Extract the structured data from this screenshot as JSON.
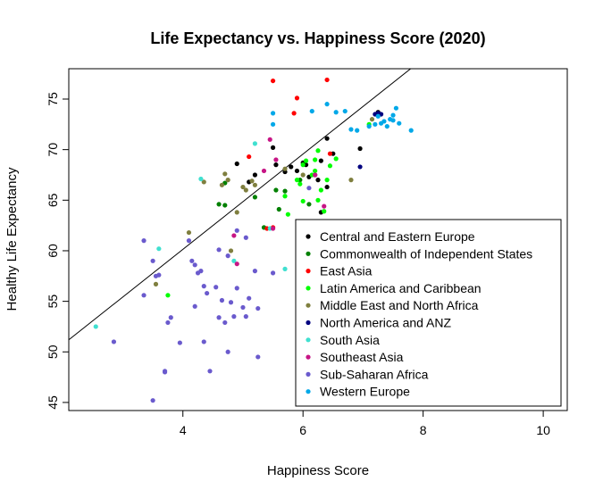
{
  "chart_data": {
    "type": "scatter",
    "title": "Life Expectancy vs. Happiness Score (2020)",
    "xlabel": "Happiness Score",
    "ylabel": "Healthy Life Expectancy",
    "xlim": [
      2.1,
      10.4
    ],
    "ylim": [
      44.2,
      78.0
    ],
    "xticks": [
      4,
      6,
      8,
      10
    ],
    "yticks": [
      45,
      50,
      55,
      60,
      65,
      70,
      75
    ],
    "grid": false,
    "legend_position": "bottom-right",
    "trendline": {
      "slope": 4.71,
      "intercept": 41.3
    },
    "series": [
      {
        "name": "Central and Eastern Europe",
        "color": "#000000",
        "points": [
          [
            4.9,
            68.6
          ],
          [
            5.1,
            66.8
          ],
          [
            5.2,
            67.5
          ],
          [
            5.5,
            70.2
          ],
          [
            5.55,
            68.5
          ],
          [
            5.7,
            67.8
          ],
          [
            5.8,
            68.3
          ],
          [
            5.9,
            67.9
          ],
          [
            6.0,
            68.7
          ],
          [
            6.05,
            68.5
          ],
          [
            6.1,
            67.3
          ],
          [
            6.2,
            67.5
          ],
          [
            6.25,
            67.0
          ],
          [
            6.3,
            68.9
          ],
          [
            6.4,
            71.1
          ],
          [
            6.3,
            63.8
          ],
          [
            6.4,
            66.3
          ],
          [
            6.5,
            69.6
          ],
          [
            6.95,
            70.1
          ],
          [
            7.25,
            73.7
          ]
        ]
      },
      {
        "name": "Commonwealth of Independent States",
        "color": "#008000",
        "points": [
          [
            4.6,
            64.6
          ],
          [
            4.7,
            64.5
          ],
          [
            4.7,
            66.7
          ],
          [
            5.2,
            65.3
          ],
          [
            5.35,
            62.3
          ],
          [
            5.55,
            66.0
          ],
          [
            5.6,
            64.1
          ],
          [
            5.7,
            65.9
          ],
          [
            5.95,
            67.0
          ],
          [
            6.1,
            64.6
          ],
          [
            6.25,
            62.6
          ]
        ]
      },
      {
        "name": "East Asia",
        "color": "#ff0000",
        "points": [
          [
            5.1,
            69.3
          ],
          [
            5.4,
            62.2
          ],
          [
            5.5,
            62.3
          ],
          [
            5.5,
            76.8
          ],
          [
            5.85,
            73.6
          ],
          [
            5.9,
            75.1
          ],
          [
            6.45,
            69.6
          ],
          [
            6.4,
            76.9
          ]
        ]
      },
      {
        "name": "Latin America and Caribbean",
        "color": "#00ff00",
        "points": [
          [
            3.75,
            55.6
          ],
          [
            5.7,
            65.4
          ],
          [
            5.75,
            63.6
          ],
          [
            5.9,
            67.0
          ],
          [
            5.95,
            66.6
          ],
          [
            6.0,
            64.9
          ],
          [
            6.0,
            68.5
          ],
          [
            6.05,
            68.9
          ],
          [
            6.15,
            67.5
          ],
          [
            6.2,
            67.9
          ],
          [
            6.25,
            69.9
          ],
          [
            6.3,
            66.0
          ],
          [
            6.35,
            63.9
          ],
          [
            6.4,
            67.0
          ],
          [
            6.45,
            68.4
          ],
          [
            6.2,
            69.0
          ],
          [
            6.25,
            65.0
          ],
          [
            6.55,
            69.1
          ],
          [
            7.1,
            72.5
          ]
        ]
      },
      {
        "name": "Middle East and North Africa",
        "color": "#7f7f3f",
        "points": [
          [
            3.55,
            56.7
          ],
          [
            4.1,
            61.8
          ],
          [
            4.35,
            66.8
          ],
          [
            4.65,
            66.5
          ],
          [
            4.7,
            67.6
          ],
          [
            4.75,
            67.0
          ],
          [
            4.8,
            60.0
          ],
          [
            4.9,
            63.8
          ],
          [
            5.0,
            66.3
          ],
          [
            5.05,
            66.0
          ],
          [
            5.15,
            66.9
          ],
          [
            5.2,
            66.5
          ],
          [
            5.7,
            68.1
          ],
          [
            6.0,
            67.5
          ],
          [
            6.8,
            67.0
          ],
          [
            7.15,
            73.0
          ]
        ]
      },
      {
        "name": "North America and ANZ",
        "color": "#00007f",
        "points": [
          [
            6.95,
            68.3
          ],
          [
            7.2,
            73.5
          ],
          [
            7.25,
            73.6
          ],
          [
            7.3,
            73.5
          ]
        ]
      },
      {
        "name": "South Asia",
        "color": "#40e0d0",
        "points": [
          [
            2.55,
            52.5
          ],
          [
            3.6,
            60.2
          ],
          [
            4.3,
            67.1
          ],
          [
            4.85,
            59.0
          ],
          [
            5.2,
            70.6
          ],
          [
            5.45,
            62.2
          ],
          [
            5.7,
            58.2
          ]
        ]
      },
      {
        "name": "Southeast Asia",
        "color": "#c71585",
        "points": [
          [
            4.85,
            61.5
          ],
          [
            4.9,
            58.7
          ],
          [
            5.35,
            67.9
          ],
          [
            5.45,
            71.0
          ],
          [
            5.55,
            69.0
          ],
          [
            5.5,
            62.2
          ],
          [
            6.2,
            67.5
          ],
          [
            6.35,
            64.4
          ]
        ]
      },
      {
        "name": "Sub-Saharan Africa",
        "color": "#6a5acd",
        "points": [
          [
            2.85,
            51.0
          ],
          [
            3.35,
            55.6
          ],
          [
            3.35,
            61.0
          ],
          [
            3.5,
            45.2
          ],
          [
            3.5,
            59.0
          ],
          [
            3.55,
            57.5
          ],
          [
            3.7,
            48.0
          ],
          [
            3.75,
            52.9
          ],
          [
            3.8,
            53.4
          ],
          [
            3.95,
            50.9
          ],
          [
            4.15,
            59.0
          ],
          [
            4.2,
            54.5
          ],
          [
            4.25,
            57.8
          ],
          [
            4.3,
            58.0
          ],
          [
            4.35,
            56.5
          ],
          [
            4.35,
            51.0
          ],
          [
            4.4,
            55.8
          ],
          [
            4.45,
            48.1
          ],
          [
            4.55,
            56.4
          ],
          [
            4.6,
            53.4
          ],
          [
            4.6,
            60.1
          ],
          [
            4.65,
            55.1
          ],
          [
            4.7,
            52.9
          ],
          [
            4.75,
            59.5
          ],
          [
            4.75,
            50.0
          ],
          [
            4.8,
            54.9
          ],
          [
            4.85,
            53.5
          ],
          [
            4.9,
            56.3
          ],
          [
            4.9,
            62.0
          ],
          [
            5.0,
            54.4
          ],
          [
            5.05,
            53.5
          ],
          [
            5.05,
            61.3
          ],
          [
            5.1,
            55.3
          ],
          [
            5.2,
            58.0
          ],
          [
            5.25,
            49.5
          ],
          [
            5.25,
            54.3
          ],
          [
            5.5,
            57.8
          ],
          [
            6.1,
            66.2
          ],
          [
            4.2,
            58.6
          ],
          [
            4.1,
            61.0
          ],
          [
            3.6,
            57.6
          ],
          [
            3.7,
            48.1
          ]
        ]
      },
      {
        "name": "Western Europe",
        "color": "#00a8e8",
        "points": [
          [
            5.5,
            72.5
          ],
          [
            5.5,
            73.6
          ],
          [
            6.15,
            73.8
          ],
          [
            6.4,
            74.5
          ],
          [
            6.55,
            73.7
          ],
          [
            6.7,
            73.8
          ],
          [
            6.8,
            72.0
          ],
          [
            6.9,
            71.9
          ],
          [
            7.1,
            72.3
          ],
          [
            7.2,
            72.5
          ],
          [
            7.25,
            73.3
          ],
          [
            7.3,
            72.6
          ],
          [
            7.35,
            72.8
          ],
          [
            7.45,
            73.0
          ],
          [
            7.5,
            73.4
          ],
          [
            7.55,
            74.1
          ],
          [
            7.6,
            72.6
          ],
          [
            7.8,
            71.9
          ],
          [
            7.4,
            72.3
          ],
          [
            7.5,
            72.9
          ]
        ]
      }
    ]
  }
}
